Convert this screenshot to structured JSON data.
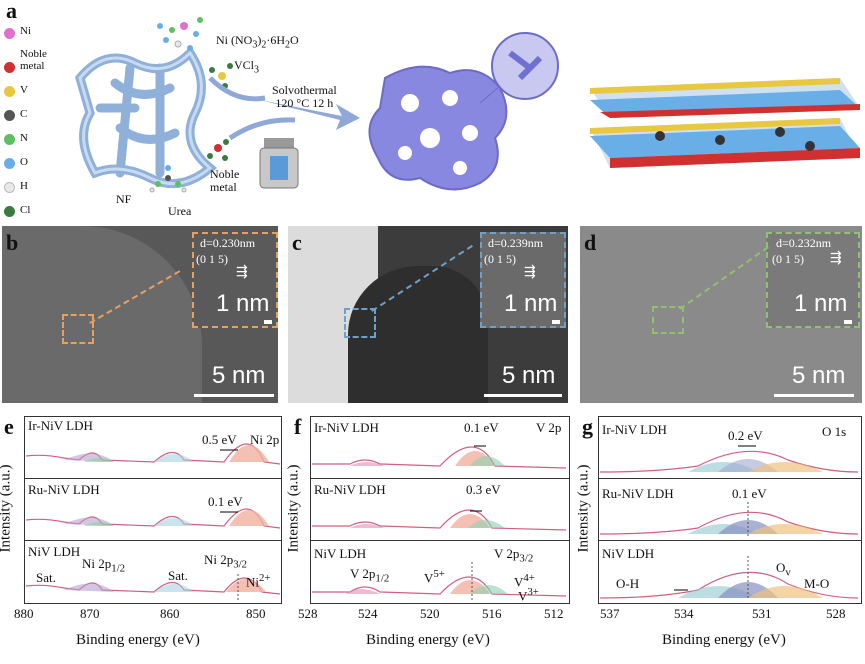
{
  "panel_labels": {
    "a": "a",
    "b": "b",
    "c": "c",
    "d": "d",
    "e": "e",
    "f": "f",
    "g": "g"
  },
  "legend": [
    {
      "label": "Ni",
      "color": "#e070d0"
    },
    {
      "label": "Noble metal",
      "color": "#d03030"
    },
    {
      "label": "V",
      "color": "#e8c840"
    },
    {
      "label": "C",
      "color": "#555555"
    },
    {
      "label": "N",
      "color": "#5cc060"
    },
    {
      "label": "O",
      "color": "#6aaee8"
    },
    {
      "label": "H",
      "color": "#e8e8e8"
    },
    {
      "label": "Cl",
      "color": "#3c7a40"
    }
  ],
  "scheme": {
    "nf": "NF",
    "urea": "Urea",
    "reagent1": "Ni (NO",
    "reagent1_sub": "3",
    "reagent1_tail": ")",
    "reagent1_sub2": "2",
    "reagent1_end": "·6H",
    "reagent1_sub3": "2",
    "reagent1_o": "O",
    "reagent2": "VCl",
    "reagent2_sub": "3",
    "noble_line1": "Noble",
    "noble_line2": "metal",
    "cond1": "Solvothermal",
    "cond2": "120 °C 12 h"
  },
  "tem": [
    {
      "label": "b",
      "d": "d=0.230nm",
      "plane": "(0 1 5)",
      "inset_scale": "1 nm",
      "scale": "5 nm",
      "frame": "#e8a060"
    },
    {
      "label": "c",
      "d": "d=0.239nm",
      "plane": "(0 1 5)",
      "inset_scale": "1 nm",
      "scale": "5 nm",
      "frame": "#70a0c8"
    },
    {
      "label": "d",
      "d": "d=0.232nm",
      "plane": "(0 1 5)",
      "inset_scale": "1 nm",
      "scale": "5 nm",
      "frame": "#90c070"
    }
  ],
  "xps": {
    "ylabel": "Intensity (a.u.)",
    "xlabel": "Binding energy (eV)",
    "e": {
      "ticks": [
        "880",
        "870",
        "860",
        "850"
      ],
      "element": "Ni 2p",
      "rows": [
        {
          "name": "Ir-NiV LDH",
          "shift": "0.5 eV"
        },
        {
          "name": "Ru-NiV LDH",
          "shift": "0.1 eV"
        },
        {
          "name": "NiV LDH"
        }
      ],
      "ann": {
        "sat1": "Sat.",
        "sat2": "Sat.",
        "p12": "Ni 2p",
        "p12_sub": "1/2",
        "p32": "Ni 2p",
        "p32_sub": "3/2",
        "ni": "Ni",
        "ni_sup": "2+"
      }
    },
    "f": {
      "ticks": [
        "528",
        "524",
        "520",
        "516",
        "512"
      ],
      "element": "V 2p",
      "rows": [
        {
          "name": "Ir-NiV LDH",
          "shift": "0.1 eV"
        },
        {
          "name": "Ru-NiV LDH",
          "shift": "0.3 eV"
        },
        {
          "name": "NiV LDH"
        }
      ],
      "ann": {
        "p12": "V 2p",
        "p12_sub": "1/2",
        "p32": "V 2p",
        "p32_sub": "3/2",
        "v5": "V",
        "v5_sup": "5+",
        "v4": "V",
        "v4_sup": "4+",
        "v3": "V",
        "v3_sup": "3+"
      }
    },
    "g": {
      "ticks": [
        "537",
        "534",
        "531",
        "528"
      ],
      "element": "O 1s",
      "rows": [
        {
          "name": "Ir-NiV LDH",
          "shift": "0.2 eV"
        },
        {
          "name": "Ru-NiV LDH",
          "shift": "0.1 eV"
        },
        {
          "name": "NiV LDH"
        }
      ],
      "ann": {
        "oh": "O-H",
        "ov": "O",
        "ov_sub": "v",
        "mo": "M-O"
      }
    }
  }
}
